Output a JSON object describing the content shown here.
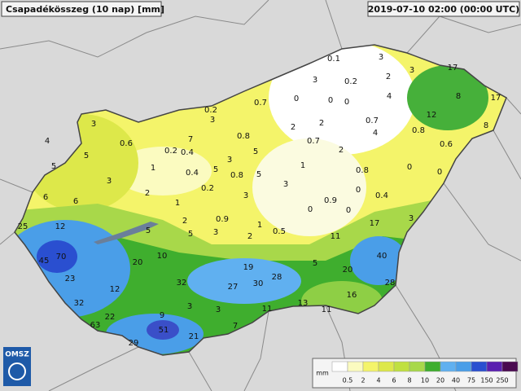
{
  "header": {
    "title": "Csapadékösszeg (10 nap) [mm]",
    "timestamp": "2019-07-10 02:00 (00:00 UTC)"
  },
  "logo": "OMSZ",
  "legend": {
    "unit": "mm",
    "labels": [
      0.5,
      2,
      4,
      6,
      8,
      10,
      20,
      40,
      75,
      150,
      250
    ]
  },
  "stations": [
    0.1,
    3,
    17,
    3,
    3,
    2,
    0.2,
    4,
    8,
    17,
    0.7,
    0,
    0,
    0,
    0.2,
    3,
    12,
    3,
    2,
    2,
    0.7,
    0.8,
    8,
    7,
    4,
    0.6,
    0.8,
    0.7,
    4,
    0.6,
    0.2,
    0.4,
    5,
    2,
    5,
    1,
    3,
    1,
    0,
    0,
    5,
    0.4,
    5,
    0.8,
    5,
    0.8,
    3,
    3,
    0,
    0.2,
    2,
    3,
    0.4,
    6,
    6,
    0.9,
    1,
    0,
    0,
    2,
    0.9,
    1,
    17,
    3,
    25,
    12,
    5,
    5,
    3,
    2,
    0.5,
    11,
    45,
    70,
    20,
    10,
    19,
    5,
    20,
    40,
    28,
    23,
    32,
    27,
    30,
    28,
    12,
    16,
    32,
    3,
    3,
    11,
    13,
    11,
    22,
    9,
    63,
    7,
    51,
    21,
    29
  ]
}
